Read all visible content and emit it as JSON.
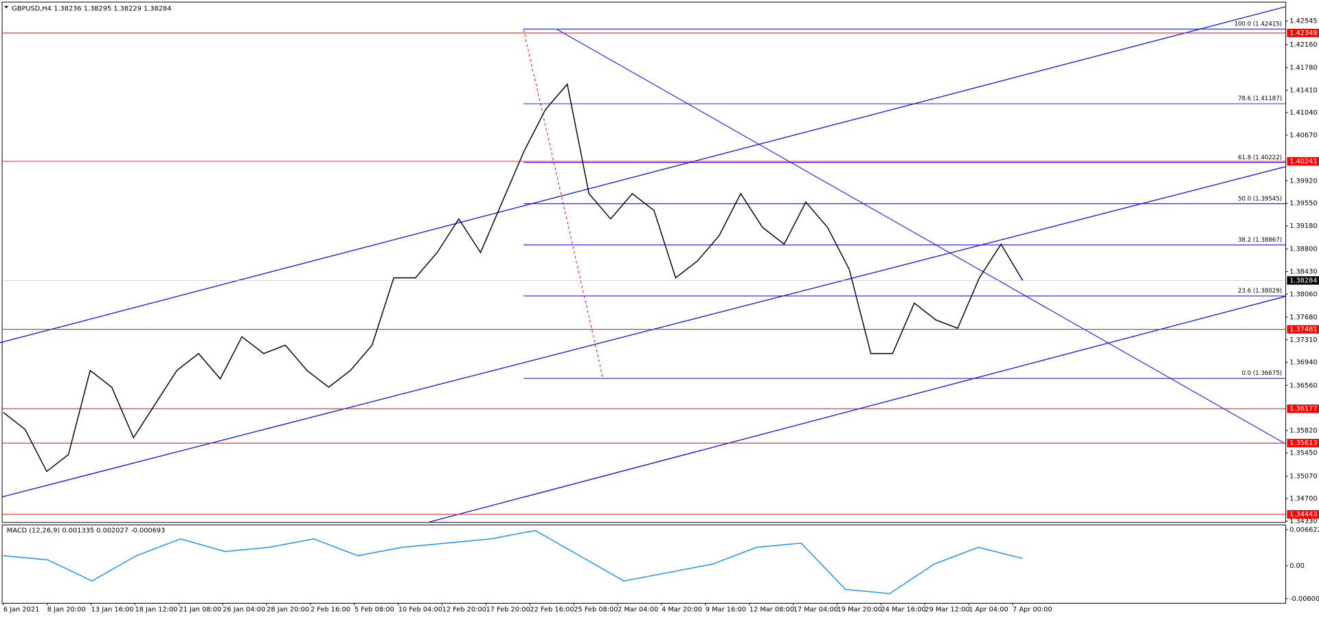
{
  "header": {
    "title": "GBPUSD,H4  1.38236 1.38295 1.38229 1.38284"
  },
  "time_axis": {
    "labels": [
      "6 Jan 2021",
      "8 Jan 20:00",
      "13 Jan 16:00",
      "18 Jan 12:00",
      "21 Jan 08:00",
      "26 Jan 04:00",
      "28 Jan 20:00",
      "2 Feb 16:00",
      "5 Feb 08:00",
      "10 Feb 04:00",
      "12 Feb 20:00",
      "17 Feb 20:00",
      "22 Feb 16:00",
      "25 Feb 08:00",
      "2 Mar 04:00",
      "4 Mar 20:00",
      "9 Mar 16:00",
      "12 Mar 08:00",
      "17 Mar 04:00",
      "19 Mar 20:00",
      "24 Mar 16:00",
      "29 Mar 12:00",
      "1 Apr 04:00",
      "7 Apr 00:00"
    ]
  },
  "chart_data": [
    {
      "type": "line",
      "color": "#000000",
      "values": [
        1.36115,
        1.35838,
        1.35147,
        1.35424,
        1.36806,
        1.3653,
        1.357,
        1.36253,
        1.36806,
        1.37083,
        1.36668,
        1.37359,
        1.37083,
        1.37221,
        1.36806,
        1.3653,
        1.36806,
        1.37221,
        1.38327,
        1.38327,
        1.38742,
        1.39295,
        1.38742,
        1.39572,
        1.40402,
        1.41093,
        1.41508,
        1.3971,
        1.39295,
        1.3971,
        1.39433,
        1.38327,
        1.38604,
        1.39019,
        1.3971,
        1.39157,
        1.3888,
        1.39572,
        1.39157,
        1.38466,
        1.37083,
        1.37083,
        1.37912,
        1.37636,
        1.37498,
        1.38327,
        1.3888,
        1.38284
      ],
      "ylim": [
        1.34316,
        1.42891
      ],
      "yticks": [
        1.42545,
        {
          "value": 1.4216,
          "label": "1.42160"
        },
        {
          "value": 1.4178,
          "label": "1.41780"
        },
        {
          "value": 1.4141,
          "label": "1.41410"
        },
        {
          "value": 1.4104,
          "label": "1.41040"
        },
        {
          "value": 1.4067,
          "label": "1.40670"
        },
        {
          "value": 1.3992,
          "label": "1.39920"
        },
        {
          "value": 1.3955,
          "label": "1.39550"
        },
        {
          "value": 1.3918,
          "label": "1.39180"
        },
        {
          "value": 1.388,
          "label": "1.38800"
        },
        {
          "value": 1.3843,
          "label": "1.38430"
        },
        {
          "value": 1.3806,
          "label": "1.38060"
        },
        {
          "value": 1.3768,
          "label": "1.37680"
        },
        {
          "value": 1.3731,
          "label": "1.37310"
        },
        {
          "value": 1.3694,
          "label": "1.36940"
        },
        {
          "value": 1.3656,
          "label": "1.36560"
        },
        {
          "value": 1.3582,
          "label": "1.35820"
        },
        {
          "value": 1.3545,
          "label": "1.35450"
        },
        {
          "value": 1.3507,
          "label": "1.35070"
        },
        {
          "value": 1.347,
          "label": "1.34700"
        },
        {
          "value": 1.3433,
          "label": "1.34330"
        }
      ],
      "levels": [
        1.42349,
        1.40241,
        1.37481,
        1.36177,
        1.35613,
        1.34443
      ],
      "level_color": "#ff0000",
      "current_price": 1.38284,
      "fib_color": "#0000ff",
      "fib_levels": [
        {
          "value": 1.42415,
          "label": "100.0  (1.42415)"
        },
        {
          "value": 1.41187,
          "label": "78.6  (1.41187)"
        },
        {
          "value": 1.40222,
          "label": "61.8  (1.40222)"
        },
        {
          "value": 1.39545,
          "label": "50.0  (1.39545)"
        },
        {
          "value": 1.38867,
          "label": "38.2  (1.38867)"
        },
        {
          "value": 1.38029,
          "label": "23.6  (1.38029)"
        },
        {
          "value": 1.36675,
          "label": "0.0  (1.36675)"
        }
      ]
    },
    {
      "type": "line",
      "title": "MACD (12,26,9) 0.001335 0.002027 -0.000693",
      "color": "#1e90ff",
      "values": [
        0.00185,
        0.00108,
        -0.00277,
        0.00185,
        0.00493,
        0.00262,
        0.00339,
        0.00493,
        0.00185,
        0.00339,
        0.00416,
        0.00493,
        0.00647,
        0.00185,
        -0.00277,
        -0.00123,
        0.00031,
        0.00339,
        0.00416,
        -0.00431,
        -0.00508,
        0.00031,
        0.00339,
        0.001335
      ],
      "ylim": [
        -0.00678,
        0.00724
      ],
      "yticks": [
        0.006622,
        {
          "value": 0,
          "label": "0.00"
        },
        -0.006006
      ]
    }
  ]
}
